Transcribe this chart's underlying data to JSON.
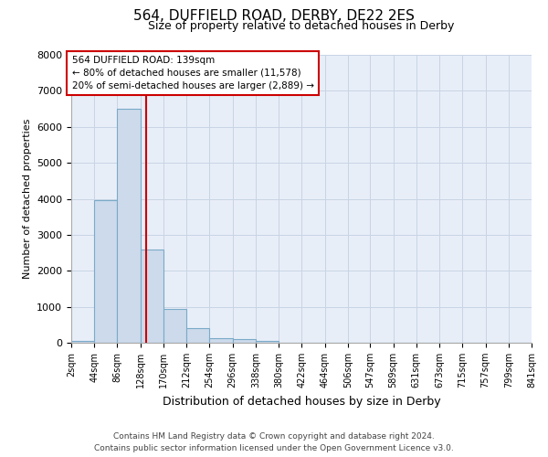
{
  "title": "564, DUFFIELD ROAD, DERBY, DE22 2ES",
  "subtitle": "Size of property relative to detached houses in Derby",
  "xlabel": "Distribution of detached houses by size in Derby",
  "ylabel": "Number of detached properties",
  "bar_color": "#ccdaeb",
  "bar_edge_color": "#7aaac8",
  "bin_edges": [
    2,
    44,
    86,
    128,
    170,
    212,
    254,
    296,
    338,
    380,
    422,
    464,
    506,
    547,
    589,
    631,
    673,
    715,
    757,
    799,
    841
  ],
  "bar_heights": [
    50,
    3950,
    6500,
    2600,
    950,
    400,
    130,
    100,
    60,
    0,
    0,
    0,
    0,
    0,
    0,
    0,
    0,
    0,
    0,
    0
  ],
  "property_size": 139,
  "property_label": "564 DUFFIELD ROAD: 139sqm",
  "annotation_line1": "← 80% of detached houses are smaller (11,578)",
  "annotation_line2": "20% of semi-detached houses are larger (2,889) →",
  "red_line_color": "#cc0000",
  "annotation_box_color": "#ffffff",
  "annotation_box_edge": "#cc0000",
  "ylim": [
    0,
    8000
  ],
  "yticks": [
    0,
    1000,
    2000,
    3000,
    4000,
    5000,
    6000,
    7000,
    8000
  ],
  "grid_color": "#c8d4e4",
  "background_color": "#e8eef8",
  "footer_line1": "Contains HM Land Registry data © Crown copyright and database right 2024.",
  "footer_line2": "Contains public sector information licensed under the Open Government Licence v3.0.",
  "tick_labels": [
    "2sqm",
    "44sqm",
    "86sqm",
    "128sqm",
    "170sqm",
    "212sqm",
    "254sqm",
    "296sqm",
    "338sqm",
    "380sqm",
    "422sqm",
    "464sqm",
    "506sqm",
    "547sqm",
    "589sqm",
    "631sqm",
    "673sqm",
    "715sqm",
    "757sqm",
    "799sqm",
    "841sqm"
  ]
}
